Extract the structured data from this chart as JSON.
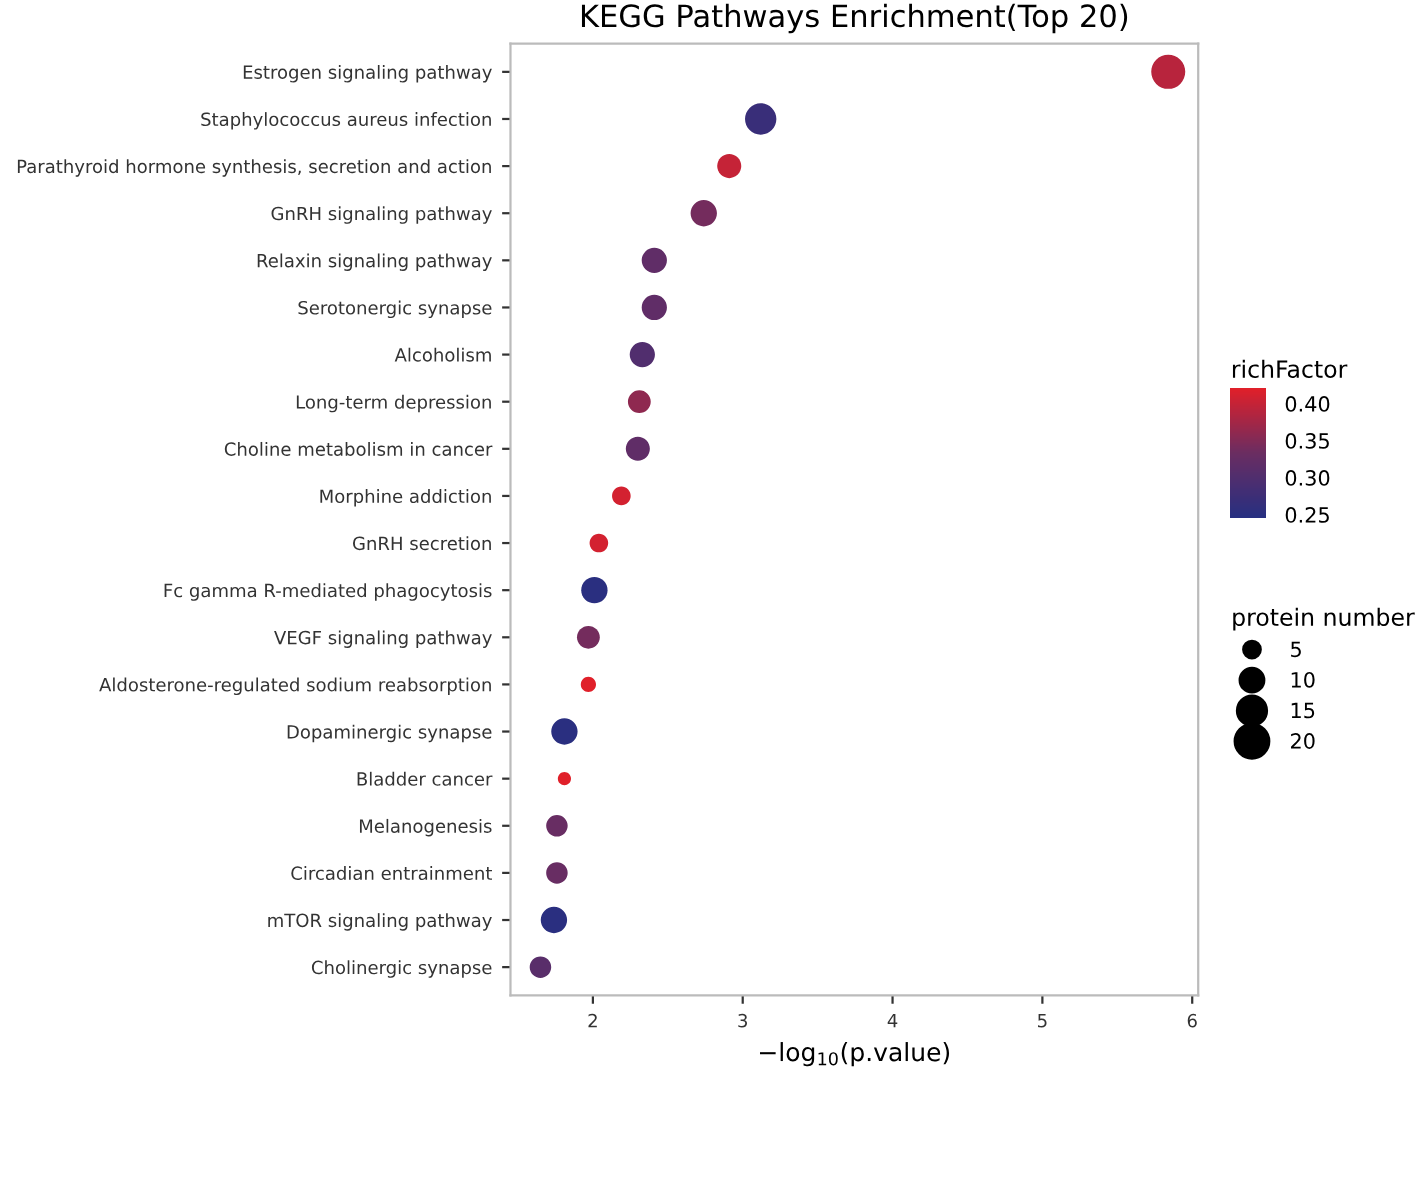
{
  "chart_data": {
    "type": "bubble",
    "title": "KEGG Pathways Enrichment(Top 20)",
    "xlabel": "−log$_{10}$(p.value)",
    "clabel": "richFactor",
    "legend_title": "protein number",
    "categories": [
      "Estrogen signaling pathway",
      "Staphylococcus aureus infection",
      "Parathyroid hormone synthesis, secretion and action",
      "GnRH signaling pathway",
      "Relaxin signaling pathway",
      "Serotonergic synapse",
      "Alcoholism",
      "Long-term depression",
      "Choline metabolism in cancer",
      "Morphine addiction",
      "GnRH secretion",
      "Fc gamma R-mediated phagocytosis",
      "VEGF signaling pathway",
      "Aldosterone-regulated sodium reabsorption",
      "Dopaminergic synapse",
      "Bladder cancer",
      "Melanogenesis",
      "Circadian entrainment",
      "mTOR signaling pathway",
      "Cholinergic synapse"
    ],
    "orientation": "horizontal",
    "values": [
      5.84,
      3.12,
      2.91,
      2.74,
      2.41,
      2.41,
      2.33,
      2.31,
      2.3,
      2.19,
      2.04,
      2.01,
      1.97,
      1.97,
      1.81,
      1.81,
      1.76,
      1.76,
      1.74,
      1.65
    ],
    "sizes": [
      20,
      17,
      10,
      12,
      11,
      11,
      11,
      9,
      10,
      6,
      6,
      12,
      9,
      4,
      12,
      3,
      8,
      8,
      12,
      8
    ],
    "cvalues": [
      0.39,
      0.27,
      0.4,
      0.34,
      0.32,
      0.32,
      0.3,
      0.36,
      0.32,
      0.41,
      0.41,
      0.25,
      0.34,
      0.42,
      0.25,
      0.42,
      0.33,
      0.33,
      0.25,
      0.31
    ],
    "clim": [
      0.245,
      0.42
    ],
    "cticks": [
      0.25,
      {
        "value": 0.3,
        "label": "0.30"
      },
      0.35,
      {
        "value": 0.4,
        "label": "0.40"
      }
    ],
    "size_legend": [
      5,
      10,
      15,
      20
    ],
    "xlim": [
      1.45,
      6.04
    ],
    "xticks": [
      2,
      3,
      4,
      5,
      6
    ],
    "grid": false
  }
}
